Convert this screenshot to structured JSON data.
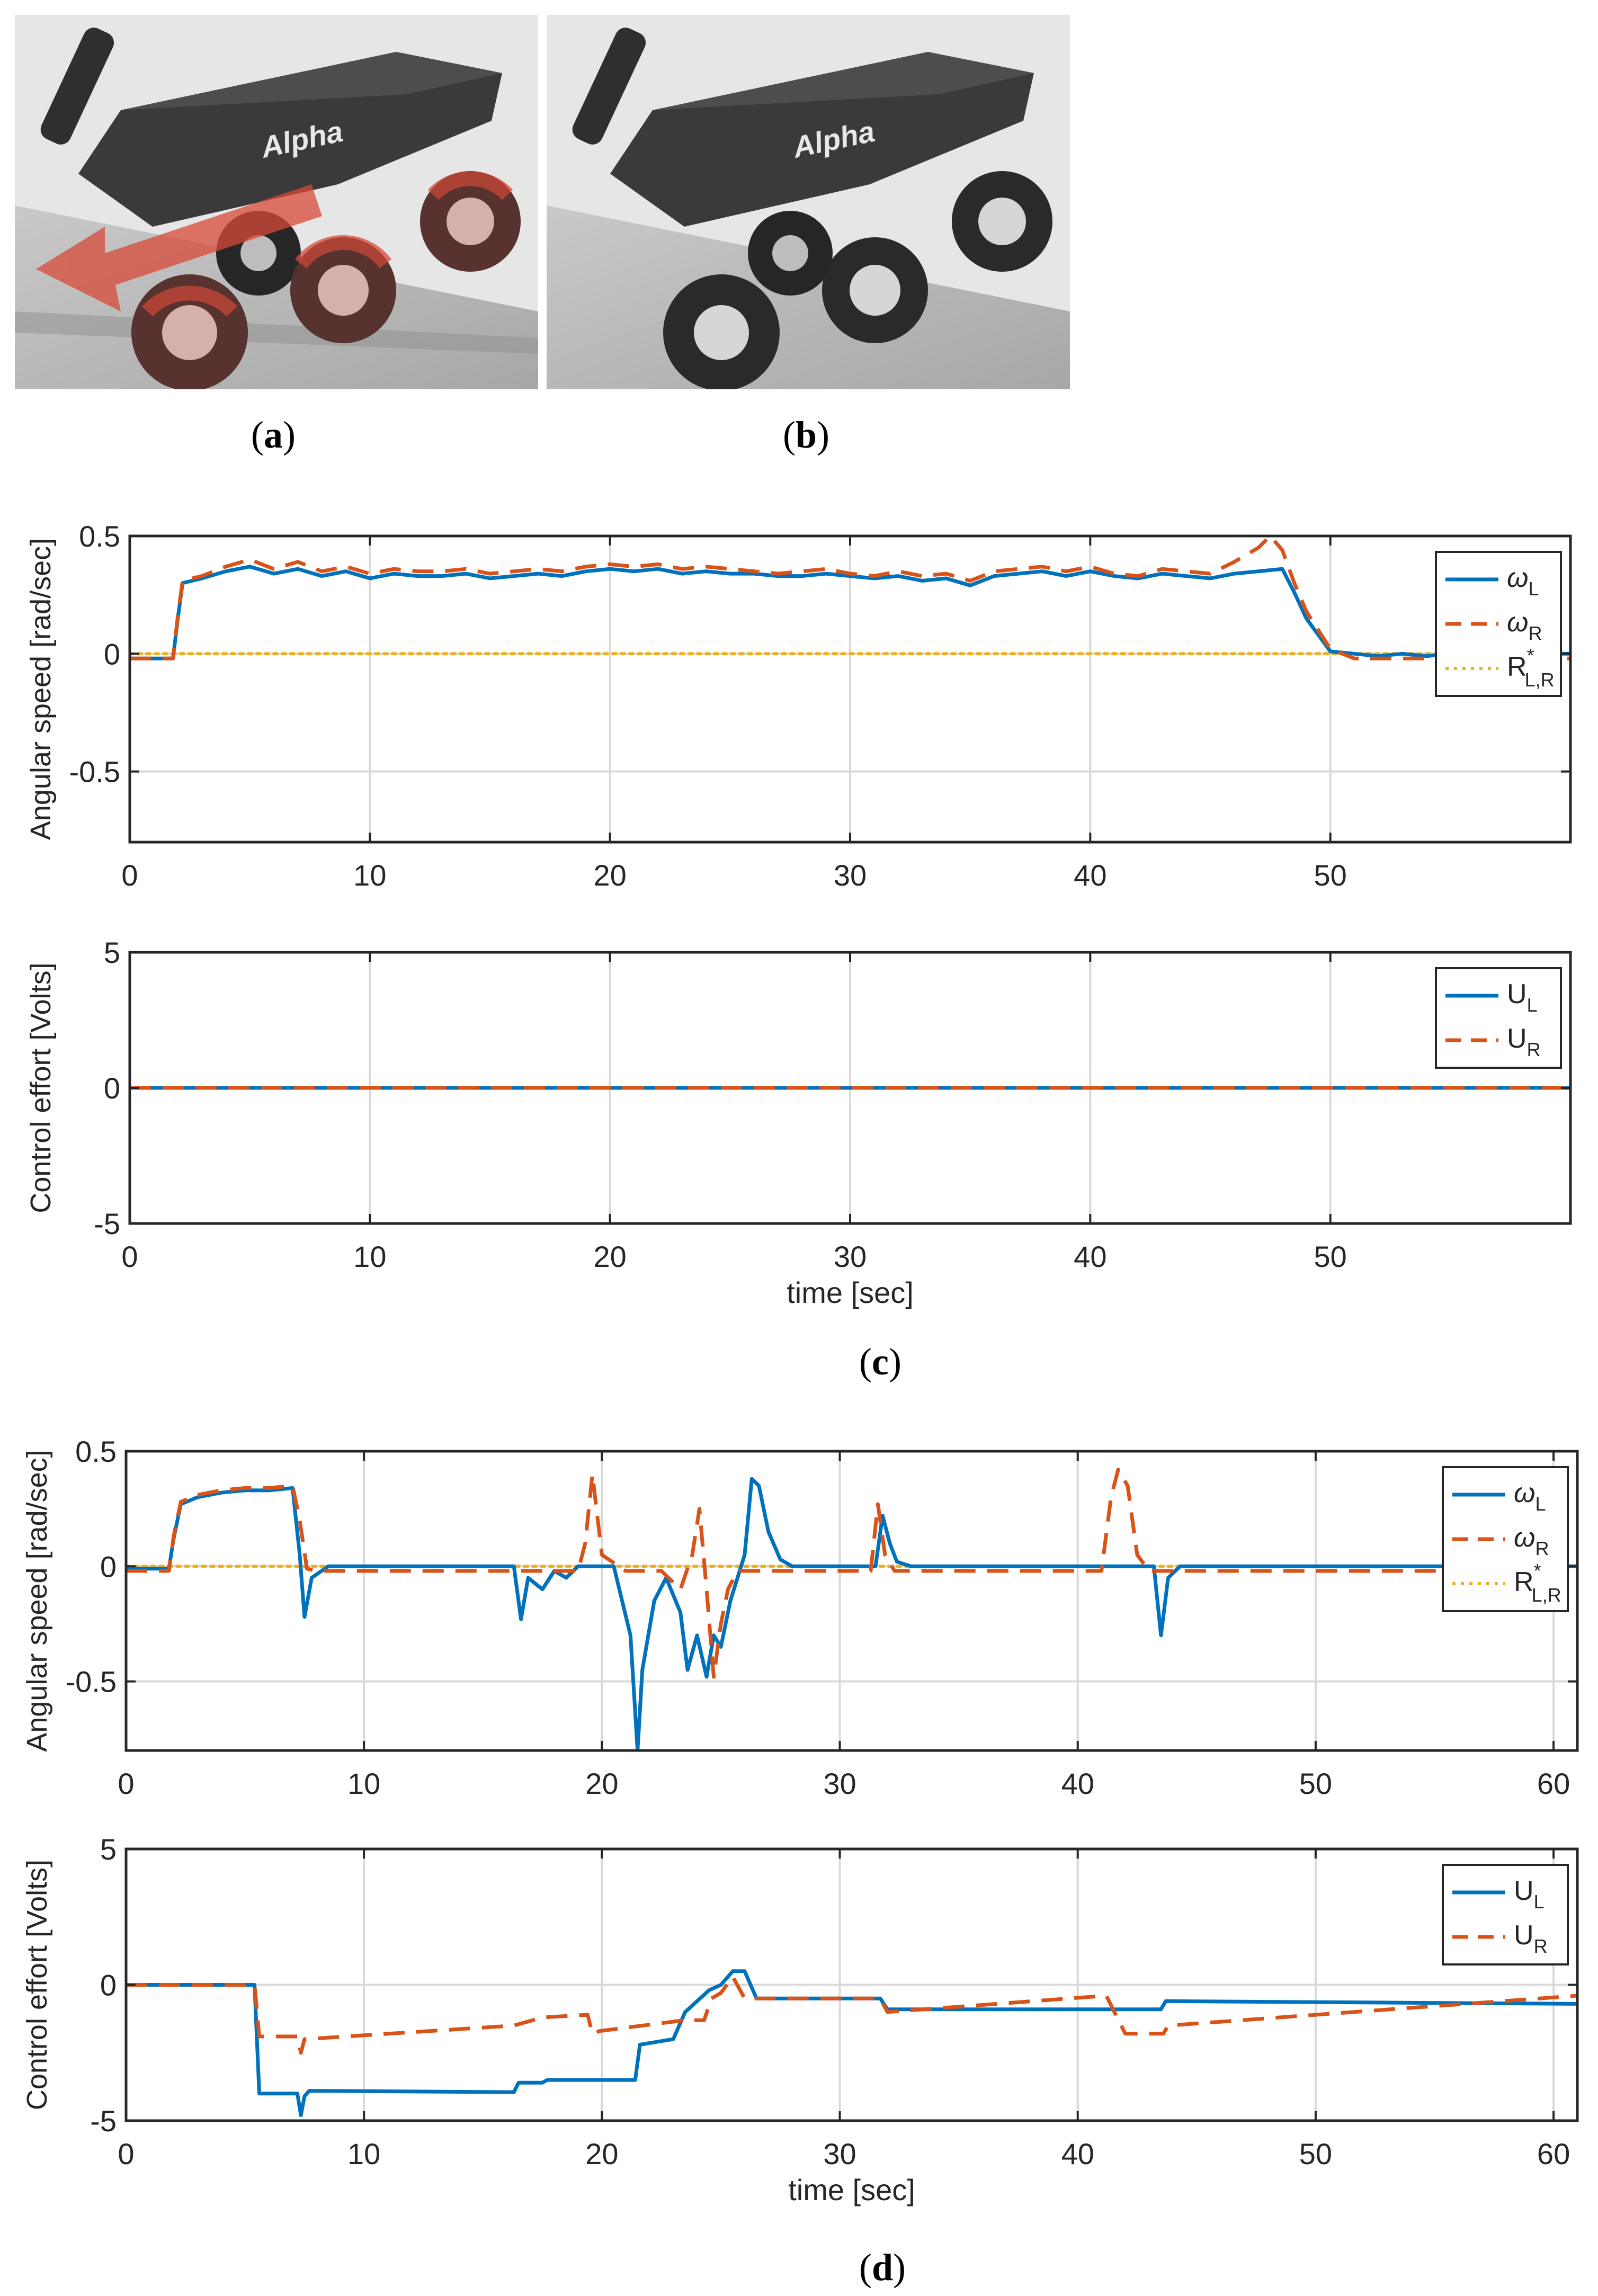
{
  "photos": {
    "a": {
      "caption": "(a)",
      "letter": "a",
      "logo_text": "Alpha",
      "arrow_color": "#d84a3a"
    },
    "b": {
      "caption": "(b)",
      "letter": "b",
      "logo_text": "Alpha"
    }
  },
  "captions": {
    "c": "c",
    "d": "d"
  },
  "colors": {
    "wL": "#0072BD",
    "wR": "#D95319",
    "ref": "#EDB120",
    "grid": "#d9d9d9",
    "axis": "#262626"
  },
  "chart_data": [
    {
      "id": "c-top",
      "type": "line",
      "xlabel": "",
      "ylabel": "Angular speed [rad/sec]",
      "xlim": [
        0,
        60
      ],
      "ylim": [
        -0.8,
        0.5
      ],
      "xticks": [
        0,
        10,
        20,
        30,
        40,
        50
      ],
      "yticks": [
        -0.5,
        0,
        0.5
      ],
      "ytick_labels": [
        "-0.5",
        "0",
        "0.5"
      ],
      "legend": {
        "position": "top-right",
        "entries": [
          {
            "symbol": "ω",
            "sub": "L",
            "sup": ""
          },
          {
            "symbol": "ω",
            "sub": "R",
            "sup": ""
          },
          {
            "symbol": "R",
            "sub": "L,R",
            "sup": "*"
          }
        ]
      },
      "series": [
        {
          "name": "ωL",
          "style": "solid",
          "x": [
            0,
            1.8,
            2.0,
            2.2,
            3,
            4,
            5,
            6,
            7,
            8,
            9,
            10,
            11,
            12,
            13,
            14,
            15,
            16,
            17,
            18,
            19,
            20,
            21,
            22,
            23,
            24,
            25,
            26,
            27,
            28,
            29,
            30,
            31,
            32,
            33,
            34,
            35,
            36,
            37,
            38,
            39,
            40,
            41,
            42,
            43,
            44,
            45,
            46,
            47,
            48,
            48.5,
            49,
            49.5,
            50,
            51,
            52,
            53,
            54,
            55,
            56,
            57,
            58,
            59,
            60
          ],
          "y": [
            -0.02,
            -0.02,
            0.15,
            0.3,
            0.32,
            0.35,
            0.37,
            0.34,
            0.36,
            0.33,
            0.35,
            0.32,
            0.34,
            0.33,
            0.33,
            0.34,
            0.32,
            0.33,
            0.34,
            0.33,
            0.35,
            0.36,
            0.35,
            0.36,
            0.34,
            0.35,
            0.34,
            0.34,
            0.33,
            0.33,
            0.34,
            0.33,
            0.32,
            0.33,
            0.31,
            0.32,
            0.29,
            0.33,
            0.34,
            0.35,
            0.33,
            0.35,
            0.33,
            0.32,
            0.34,
            0.33,
            0.32,
            0.34,
            0.35,
            0.36,
            0.26,
            0.15,
            0.08,
            0.01,
            0.0,
            -0.01,
            0.0,
            -0.01,
            0.0,
            0.0,
            -0.01,
            0.0,
            0.0,
            0.0
          ]
        },
        {
          "name": "ωR",
          "style": "dashed",
          "x": [
            0,
            1.8,
            2.0,
            2.2,
            3,
            4,
            5,
            6,
            7,
            8,
            9,
            10,
            11,
            12,
            13,
            14,
            15,
            16,
            17,
            18,
            19,
            20,
            21,
            22,
            23,
            24,
            25,
            26,
            27,
            28,
            29,
            30,
            31,
            32,
            33,
            34,
            35,
            36,
            37,
            38,
            39,
            40,
            41,
            42,
            43,
            44,
            45,
            46,
            47,
            47.5,
            48,
            48.5,
            49,
            49.5,
            50,
            51,
            52,
            53,
            54,
            55,
            56,
            57,
            58,
            59,
            60
          ],
          "y": [
            -0.02,
            -0.02,
            0.16,
            0.31,
            0.33,
            0.37,
            0.4,
            0.36,
            0.39,
            0.35,
            0.37,
            0.34,
            0.36,
            0.35,
            0.35,
            0.36,
            0.34,
            0.35,
            0.36,
            0.35,
            0.37,
            0.38,
            0.37,
            0.38,
            0.36,
            0.37,
            0.36,
            0.35,
            0.34,
            0.35,
            0.36,
            0.34,
            0.33,
            0.35,
            0.33,
            0.34,
            0.31,
            0.35,
            0.36,
            0.37,
            0.35,
            0.37,
            0.34,
            0.33,
            0.36,
            0.35,
            0.34,
            0.39,
            0.45,
            0.5,
            0.44,
            0.3,
            0.18,
            0.1,
            0.02,
            -0.02,
            -0.02,
            -0.02,
            -0.02,
            -0.02,
            -0.02,
            -0.02,
            -0.02,
            -0.02,
            -0.02
          ]
        },
        {
          "name": "R*L,R",
          "style": "dotted",
          "x": [
            0,
            60
          ],
          "y": [
            0,
            0
          ]
        }
      ]
    },
    {
      "id": "c-bottom",
      "type": "line",
      "xlabel": "time [sec]",
      "ylabel": "Control effort [Volts]",
      "xlim": [
        0,
        60
      ],
      "ylim": [
        -5,
        5
      ],
      "xticks": [
        0,
        10,
        20,
        30,
        40,
        50
      ],
      "yticks": [
        -5,
        0,
        5
      ],
      "ytick_labels": [
        "-5",
        "0",
        "5"
      ],
      "legend": {
        "position": "top-right",
        "entries": [
          {
            "symbol": "U",
            "sub": "L",
            "sup": ""
          },
          {
            "symbol": "U",
            "sub": "R",
            "sup": ""
          }
        ]
      },
      "series": [
        {
          "name": "UL",
          "style": "solid",
          "x": [
            0,
            60
          ],
          "y": [
            0,
            0
          ]
        },
        {
          "name": "UR",
          "style": "dashed",
          "x": [
            0,
            60
          ],
          "y": [
            0,
            0
          ]
        }
      ]
    },
    {
      "id": "d-top",
      "type": "line",
      "xlabel": "",
      "ylabel": "Angular speed [rad/sec]",
      "xlim": [
        0,
        61
      ],
      "ylim": [
        -0.8,
        0.5
      ],
      "xticks": [
        0,
        10,
        20,
        30,
        40,
        50,
        60
      ],
      "yticks": [
        -0.5,
        0,
        0.5
      ],
      "ytick_labels": [
        "-0.5",
        "0",
        "0.5"
      ],
      "legend": {
        "position": "top-right",
        "entries": [
          {
            "symbol": "ω",
            "sub": "L",
            "sup": ""
          },
          {
            "symbol": "ω",
            "sub": "R",
            "sup": ""
          },
          {
            "symbol": "R",
            "sub": "L,R",
            "sup": "*"
          }
        ]
      },
      "series": [
        {
          "name": "ωL",
          "style": "solid",
          "x": [
            0,
            1.8,
            2.0,
            2.3,
            3,
            4,
            5,
            6,
            7,
            7.3,
            7.5,
            7.8,
            8.5,
            16.3,
            16.6,
            16.9,
            17.5,
            18,
            18.5,
            19,
            20.5,
            21.2,
            21.5,
            21.7,
            22.2,
            22.7,
            23.3,
            23.6,
            24,
            24.4,
            24.7,
            25,
            25.4,
            25.7,
            26,
            26.3,
            26.6,
            27,
            27.5,
            28,
            30,
            31.5,
            31.8,
            32.1,
            32.4,
            33,
            35,
            40,
            43.2,
            43.5,
            43.8,
            44.3,
            45,
            50,
            55,
            61
          ],
          "y": [
            -0.01,
            -0.01,
            0.12,
            0.27,
            0.3,
            0.32,
            0.33,
            0.33,
            0.34,
            0.05,
            -0.22,
            -0.05,
            0.0,
            0.0,
            -0.23,
            -0.05,
            -0.1,
            -0.02,
            -0.05,
            0.0,
            0.0,
            -0.3,
            -0.8,
            -0.45,
            -0.15,
            -0.05,
            -0.2,
            -0.45,
            -0.3,
            -0.48,
            -0.3,
            -0.35,
            -0.15,
            -0.05,
            0.05,
            0.38,
            0.35,
            0.15,
            0.03,
            0.0,
            0.0,
            0.0,
            0.22,
            0.1,
            0.02,
            0.0,
            0.0,
            0.0,
            0.0,
            -0.3,
            -0.05,
            0.0,
            0.0,
            0.0,
            0.0,
            0.0
          ]
        },
        {
          "name": "ωR",
          "style": "dashed",
          "x": [
            0,
            1.8,
            2.0,
            2.3,
            3,
            4,
            5,
            6,
            7,
            7.3,
            7.6,
            8,
            19,
            19.3,
            19.6,
            20,
            21,
            22.5,
            23.3,
            23.8,
            24.1,
            24.4,
            24.7,
            25,
            25.3,
            25.7,
            26.2,
            31.3,
            31.6,
            31.9,
            32.3,
            41,
            41.4,
            41.7,
            42.1,
            42.5,
            43,
            61
          ],
          "y": [
            -0.02,
            -0.02,
            0.13,
            0.28,
            0.31,
            0.33,
            0.34,
            0.34,
            0.35,
            0.2,
            -0.01,
            -0.02,
            -0.02,
            0.1,
            0.4,
            0.05,
            -0.02,
            -0.02,
            -0.1,
            0.05,
            0.25,
            -0.1,
            -0.48,
            -0.25,
            -0.1,
            -0.02,
            -0.02,
            -0.02,
            0.27,
            0.05,
            -0.02,
            -0.02,
            0.3,
            0.42,
            0.35,
            0.05,
            -0.02,
            -0.02
          ]
        },
        {
          "name": "R*L,R",
          "style": "dotted",
          "x": [
            0,
            61
          ],
          "y": [
            0,
            0
          ]
        }
      ]
    },
    {
      "id": "d-bottom",
      "type": "line",
      "xlabel": "time [sec]",
      "ylabel": "Control effort [Volts]",
      "xlim": [
        0,
        61
      ],
      "ylim": [
        -5,
        5
      ],
      "xticks": [
        0,
        10,
        20,
        30,
        40,
        50,
        60
      ],
      "yticks": [
        -5,
        0,
        5
      ],
      "ytick_labels": [
        "-5",
        "0",
        "5"
      ],
      "legend": {
        "position": "top-right",
        "entries": [
          {
            "symbol": "U",
            "sub": "L",
            "sup": ""
          },
          {
            "symbol": "U",
            "sub": "R",
            "sup": ""
          }
        ]
      },
      "series": [
        {
          "name": "UL",
          "style": "solid",
          "x": [
            0,
            5.4,
            5.6,
            7.2,
            7.35,
            7.5,
            7.7,
            16.3,
            16.5,
            17.5,
            17.7,
            21.4,
            21.6,
            23,
            23.5,
            24.5,
            25,
            25.5,
            26,
            26.5,
            31.7,
            32,
            43.5,
            43.7,
            61
          ],
          "y": [
            0,
            0,
            -4.0,
            -4.0,
            -4.8,
            -4.1,
            -3.9,
            -3.95,
            -3.6,
            -3.6,
            -3.5,
            -3.5,
            -2.2,
            -2.0,
            -1.0,
            -0.2,
            0.0,
            0.5,
            0.5,
            -0.5,
            -0.5,
            -0.9,
            -0.9,
            -0.6,
            -0.7
          ]
        },
        {
          "name": "UR",
          "style": "dashed",
          "x": [
            0,
            5.4,
            5.6,
            7.2,
            7.35,
            7.5,
            16.3,
            17.5,
            19.4,
            19.6,
            19.9,
            23.5,
            24.3,
            24.6,
            25,
            25.5,
            26,
            31.7,
            32,
            41.2,
            42,
            43.6,
            43.8,
            61
          ],
          "y": [
            0,
            0,
            -1.9,
            -1.9,
            -2.5,
            -2.0,
            -1.5,
            -1.2,
            -1.1,
            -1.8,
            -1.7,
            -1.3,
            -1.3,
            -0.5,
            -0.3,
            0.3,
            -0.5,
            -0.5,
            -1.0,
            -0.4,
            -1.8,
            -1.8,
            -1.5,
            -0.4
          ]
        }
      ]
    }
  ]
}
